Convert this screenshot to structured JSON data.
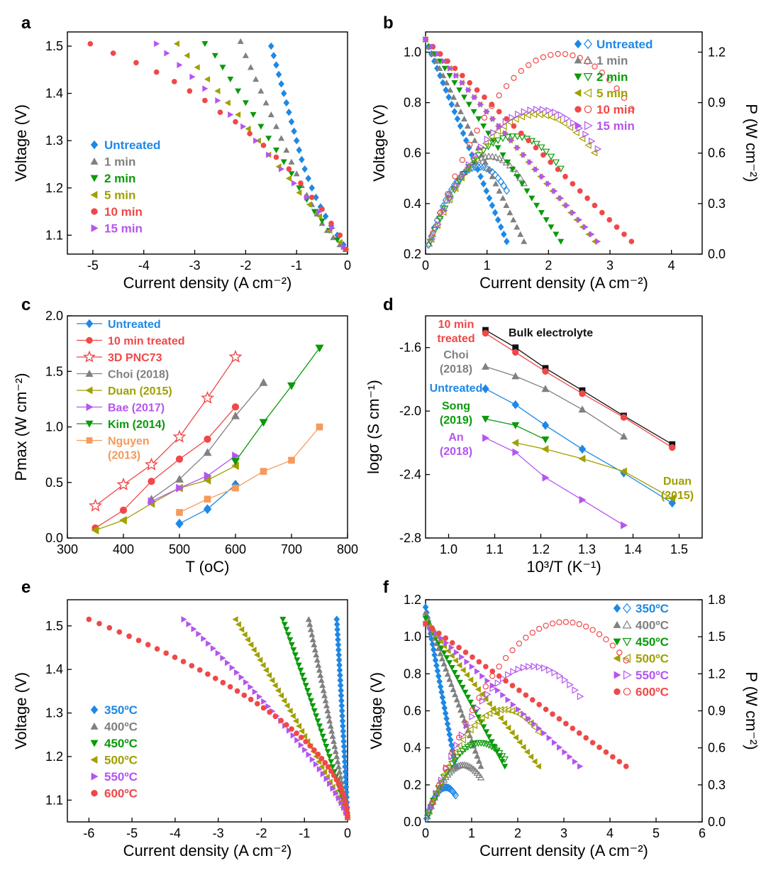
{
  "figure": {
    "panels": [
      {
        "letter": "a",
        "xlabel": "Current density (A cm⁻²)",
        "ylabel": "Voltage (V)"
      },
      {
        "letter": "b",
        "xlabel": "Current density (A cm⁻²)",
        "ylabel": "Voltage (V)",
        "y2label": "P (W cm⁻²)"
      },
      {
        "letter": "c",
        "xlabel": "T (oC)",
        "ylabel": "Pmax (W cm⁻²)"
      },
      {
        "letter": "d",
        "xlabel": "10³/T (K⁻¹)",
        "ylabel": "logσ (S cm⁻¹)"
      },
      {
        "letter": "e",
        "xlabel": "Current density (A cm⁻²)",
        "ylabel": "Voltage (V)"
      },
      {
        "letter": "f",
        "xlabel": "Current density (A cm⁻²)",
        "ylabel": "Voltage (V)",
        "y2label": "P (W cm⁻²)"
      }
    ]
  },
  "chart_data": [
    {
      "panel": "a",
      "type": "scatter",
      "xlabel": "Current density (A cm⁻²)",
      "ylabel": "Voltage (V)",
      "xlim": [
        -5.5,
        0
      ],
      "ylim": [
        1.06,
        1.53
      ],
      "xticks": [
        -5,
        -4,
        -3,
        -2,
        -1,
        0
      ],
      "yticks": [
        1.1,
        1.2,
        1.3,
        1.4,
        1.5
      ],
      "legend_position": "left-middle",
      "series": [
        {
          "name": "Untreated",
          "color": "#1E88E5",
          "marker": "diamond",
          "x": [
            -1.5,
            -1.45,
            -1.4,
            -1.35,
            -1.3,
            -1.25,
            -1.2,
            -1.15,
            -1.1,
            -1.05,
            -1.0,
            -0.95,
            -0.9,
            -0.84,
            -0.77,
            -0.7,
            -0.62,
            -0.53,
            -0.43,
            -0.32,
            -0.2,
            -0.08
          ],
          "y": [
            1.5,
            1.48,
            1.46,
            1.44,
            1.42,
            1.4,
            1.38,
            1.36,
            1.34,
            1.32,
            1.3,
            1.28,
            1.26,
            1.24,
            1.22,
            1.2,
            1.18,
            1.16,
            1.14,
            1.12,
            1.1,
            1.08
          ]
        },
        {
          "name": "1 min",
          "color": "#808080",
          "marker": "triangle-up",
          "x": [
            -2.1,
            -2.0,
            -1.9,
            -1.8,
            -1.7,
            -1.6,
            -1.5,
            -1.4,
            -1.3,
            -1.2,
            -1.1,
            -1.0,
            -0.9,
            -0.8,
            -0.7,
            -0.6,
            -0.5,
            -0.4,
            -0.28,
            -0.15,
            -0.04
          ],
          "y": [
            1.51,
            1.48,
            1.455,
            1.43,
            1.405,
            1.38,
            1.355,
            1.33,
            1.305,
            1.28,
            1.255,
            1.23,
            1.205,
            1.185,
            1.165,
            1.145,
            1.125,
            1.11,
            1.095,
            1.08,
            1.07
          ]
        },
        {
          "name": "2 min",
          "color": "#0A9A0A",
          "marker": "triangle-down",
          "x": [
            -2.8,
            -2.6,
            -2.45,
            -2.3,
            -2.15,
            -2.0,
            -1.85,
            -1.7,
            -1.55,
            -1.4,
            -1.25,
            -1.1,
            -0.95,
            -0.8,
            -0.65,
            -0.5,
            -0.35,
            -0.2,
            -0.06
          ],
          "y": [
            1.505,
            1.48,
            1.455,
            1.43,
            1.405,
            1.38,
            1.355,
            1.33,
            1.305,
            1.28,
            1.255,
            1.23,
            1.2,
            1.175,
            1.15,
            1.13,
            1.11,
            1.09,
            1.07
          ]
        },
        {
          "name": "5 min",
          "color": "#A0A000",
          "marker": "triangle-left",
          "x": [
            -3.35,
            -3.15,
            -2.95,
            -2.75,
            -2.55,
            -2.35,
            -2.15,
            -1.95,
            -1.75,
            -1.55,
            -1.35,
            -1.15,
            -0.95,
            -0.75,
            -0.55,
            -0.35,
            -0.15
          ],
          "y": [
            1.505,
            1.48,
            1.455,
            1.43,
            1.405,
            1.38,
            1.355,
            1.325,
            1.3,
            1.27,
            1.245,
            1.22,
            1.19,
            1.165,
            1.14,
            1.11,
            1.085
          ]
        },
        {
          "name": "10 min",
          "color": "#F04848",
          "marker": "circle",
          "x": [
            -5.05,
            -4.6,
            -4.15,
            -3.75,
            -3.4,
            -3.1,
            -2.8,
            -2.5,
            -2.2,
            -1.92,
            -1.65,
            -1.4,
            -1.15,
            -0.92,
            -0.7,
            -0.5,
            -0.32,
            -0.15,
            -0.03
          ],
          "y": [
            1.505,
            1.485,
            1.465,
            1.445,
            1.425,
            1.405,
            1.385,
            1.36,
            1.34,
            1.315,
            1.29,
            1.265,
            1.24,
            1.21,
            1.18,
            1.155,
            1.125,
            1.1,
            1.07
          ]
        },
        {
          "name": "15 min",
          "color": "#B455F0",
          "marker": "triangle-right",
          "x": [
            -3.75,
            -3.55,
            -3.3,
            -3.05,
            -2.8,
            -2.55,
            -2.3,
            -2.05,
            -1.8,
            -1.55,
            -1.3,
            -1.05,
            -0.8,
            -0.55,
            -0.3,
            -0.08
          ],
          "y": [
            1.505,
            1.485,
            1.46,
            1.435,
            1.41,
            1.385,
            1.355,
            1.33,
            1.3,
            1.27,
            1.24,
            1.21,
            1.18,
            1.15,
            1.115,
            1.075
          ]
        }
      ]
    },
    {
      "panel": "b",
      "type": "scatter",
      "xlabel": "Current density (A cm⁻²)",
      "ylabel": "Voltage (V)",
      "y2label": "P (W cm⁻²)",
      "xlim": [
        0,
        4.5
      ],
      "ylim": [
        0.2,
        1.08
      ],
      "y2lim": [
        0,
        1.32
      ],
      "xticks": [
        0,
        1,
        2,
        3,
        4
      ],
      "yticks": [
        0.2,
        0.4,
        0.6,
        0.8,
        1.0
      ],
      "y2ticks": [
        0.0,
        0.3,
        0.6,
        0.9,
        1.2
      ],
      "legend_position": "top-right",
      "series": [
        {
          "name": "Untreated",
          "color": "#1E88E5",
          "marker": "diamond",
          "jmax": 1.32,
          "pmax": 0.52
        },
        {
          "name": "1 min",
          "color": "#808080",
          "marker": "triangle-up",
          "jmax": 1.6,
          "pmax": 0.58
        },
        {
          "name": "2 min",
          "color": "#0A9A0A",
          "marker": "triangle-down",
          "jmax": 2.2,
          "pmax": 0.7
        },
        {
          "name": "5 min",
          "color": "#A0A000",
          "marker": "triangle-left",
          "jmax": 2.75,
          "pmax": 0.83
        },
        {
          "name": "10 min",
          "color": "#F04848",
          "marker": "circle",
          "jmax": 3.35,
          "pmax": 1.19
        },
        {
          "name": "15 min",
          "color": "#B455F0",
          "marker": "triangle-right",
          "jmax": 2.8,
          "pmax": 0.86
        }
      ]
    },
    {
      "panel": "c",
      "type": "line",
      "xlabel": "T (oC)",
      "ylabel": "Pmax (W cm⁻²)",
      "xlim": [
        300,
        800
      ],
      "ylim": [
        0,
        2.0
      ],
      "xticks": [
        300,
        400,
        500,
        600,
        700,
        800
      ],
      "yticks": [
        0.0,
        0.5,
        1.0,
        1.5,
        2.0
      ],
      "legend_position": "top-left",
      "series": [
        {
          "name": "Untreated",
          "color": "#1E88E5",
          "marker": "diamond",
          "x": [
            500,
            550,
            600
          ],
          "y": [
            0.13,
            0.26,
            0.48
          ]
        },
        {
          "name": "10 min treated",
          "color": "#F04848",
          "marker": "circle",
          "x": [
            350,
            400,
            450,
            500,
            550,
            600
          ],
          "y": [
            0.09,
            0.25,
            0.51,
            0.71,
            0.89,
            1.18
          ]
        },
        {
          "name": "3D PNC73",
          "color": "#F04848",
          "marker": "star-open",
          "x": [
            350,
            400,
            450,
            500,
            550,
            600
          ],
          "y": [
            0.29,
            0.48,
            0.66,
            0.91,
            1.26,
            1.63
          ]
        },
        {
          "name": "Choi (2018)",
          "color": "#808080",
          "marker": "triangle-up",
          "x": [
            450,
            500,
            550,
            600,
            650
          ],
          "y": [
            0.35,
            0.53,
            0.77,
            1.1,
            1.4
          ]
        },
        {
          "name": "Duan (2015)",
          "color": "#A0A000",
          "marker": "triangle-left",
          "x": [
            350,
            400,
            450,
            500,
            550,
            600
          ],
          "y": [
            0.07,
            0.16,
            0.31,
            0.45,
            0.52,
            0.65
          ]
        },
        {
          "name": "Bae (2017)",
          "color": "#B455F0",
          "marker": "triangle-right",
          "x": [
            450,
            500,
            550,
            600
          ],
          "y": [
            0.33,
            0.45,
            0.56,
            0.74
          ]
        },
        {
          "name": "Kim (2014)",
          "color": "#0A9A0A",
          "marker": "triangle-down",
          "x": [
            600,
            650,
            700,
            750
          ],
          "y": [
            0.69,
            1.04,
            1.37,
            1.71
          ]
        },
        {
          "name": "Nguyen (2013)",
          "color": "#F59A5A",
          "marker": "square",
          "x": [
            500,
            550,
            600,
            650,
            700,
            750
          ],
          "y": [
            0.23,
            0.35,
            0.45,
            0.6,
            0.7,
            1.0
          ]
        }
      ]
    },
    {
      "panel": "d",
      "type": "line",
      "xlabel": "10³/T (K⁻¹)",
      "ylabel": "logσ (S cm⁻¹)",
      "xlim": [
        0.95,
        1.55
      ],
      "ylim": [
        -2.8,
        -1.4
      ],
      "xticks": [
        1.0,
        1.1,
        1.2,
        1.3,
        1.4,
        1.5
      ],
      "yticks": [
        -1.6,
        -2.0,
        -2.4,
        -2.8
      ],
      "series": [
        {
          "name": "Bulk electrolyte",
          "color": "#111111",
          "marker": "square",
          "x": [
            1.08,
            1.145,
            1.21,
            1.29,
            1.38,
            1.485
          ],
          "y": [
            -1.49,
            -1.6,
            -1.73,
            -1.87,
            -2.03,
            -2.21
          ]
        },
        {
          "name": "10 min treated",
          "color": "#F04848",
          "marker": "circle",
          "x": [
            1.08,
            1.145,
            1.21,
            1.29,
            1.38,
            1.485
          ],
          "y": [
            -1.51,
            -1.63,
            -1.75,
            -1.89,
            -2.04,
            -2.23
          ]
        },
        {
          "name": "Choi (2018)",
          "color": "#808080",
          "marker": "triangle-up",
          "x": [
            1.08,
            1.145,
            1.21,
            1.29,
            1.38
          ],
          "y": [
            -1.72,
            -1.78,
            -1.86,
            -1.99,
            -2.16
          ]
        },
        {
          "name": "Untreated",
          "color": "#1E88E5",
          "marker": "diamond",
          "x": [
            1.08,
            1.145,
            1.21,
            1.29,
            1.38,
            1.485
          ],
          "y": [
            -1.86,
            -1.96,
            -2.09,
            -2.24,
            -2.39,
            -2.58
          ]
        },
        {
          "name": "Song (2019)",
          "color": "#0A9A0A",
          "marker": "triangle-down",
          "x": [
            1.08,
            1.145,
            1.21
          ],
          "y": [
            -2.05,
            -2.09,
            -2.18
          ]
        },
        {
          "name": "Duan (2015)",
          "color": "#A0A000",
          "marker": "triangle-left",
          "x": [
            1.145,
            1.21,
            1.29,
            1.38,
            1.485
          ],
          "y": [
            -2.2,
            -2.24,
            -2.3,
            -2.38,
            -2.55
          ]
        },
        {
          "name": "An (2018)",
          "color": "#B455F0",
          "marker": "triangle-right",
          "x": [
            1.08,
            1.145,
            1.21,
            1.29,
            1.38
          ],
          "y": [
            -2.17,
            -2.26,
            -2.42,
            -2.56,
            -2.72
          ]
        }
      ],
      "labels": [
        {
          "text": "Bulk electrolyte",
          "color": "#111111"
        },
        {
          "text": "10 min treated",
          "color": "#F04848"
        },
        {
          "text": "Choi (2018)",
          "color": "#808080"
        },
        {
          "text": "Untreated",
          "color": "#1E88E5"
        },
        {
          "text": "Song (2019)",
          "color": "#0A9A0A"
        },
        {
          "text": "An (2018)",
          "color": "#B455F0"
        },
        {
          "text": "Duan (2015)",
          "color": "#A0A000"
        }
      ]
    },
    {
      "panel": "e",
      "type": "scatter",
      "xlabel": "Current density (A cm⁻²)",
      "ylabel": "Voltage (V)",
      "xlim": [
        -6.5,
        0
      ],
      "ylim": [
        1.05,
        1.56
      ],
      "xticks": [
        -6,
        -5,
        -4,
        -3,
        -2,
        -1,
        0
      ],
      "yticks": [
        1.1,
        1.2,
        1.3,
        1.4,
        1.5
      ],
      "legend_position": "bottom-left",
      "series": [
        {
          "name": "350ºC",
          "color": "#1E88E5",
          "marker": "diamond",
          "jmin": -0.25,
          "n": 40
        },
        {
          "name": "400ºC",
          "color": "#808080",
          "marker": "triangle-up",
          "jmin": -0.9,
          "n": 40
        },
        {
          "name": "450ºC",
          "color": "#0A9A0A",
          "marker": "triangle-down",
          "jmin": -1.5,
          "n": 40
        },
        {
          "name": "500ºC",
          "color": "#A0A000",
          "marker": "triangle-left",
          "jmin": -2.6,
          "n": 40
        },
        {
          "name": "550ºC",
          "color": "#B455F0",
          "marker": "triangle-right",
          "jmin": -3.8,
          "n": 42
        },
        {
          "name": "600ºC",
          "color": "#F04848",
          "marker": "circle",
          "jmin": -6.0,
          "n": 48
        }
      ]
    },
    {
      "panel": "f",
      "type": "scatter",
      "xlabel": "Current density (A cm⁻²)",
      "ylabel": "Voltage (V)",
      "y2label": "P (W cm⁻²)",
      "xlim": [
        0,
        6
      ],
      "ylim": [
        0,
        1.2
      ],
      "y2lim": [
        0,
        1.8
      ],
      "xticks": [
        0,
        1,
        2,
        3,
        4,
        5,
        6
      ],
      "yticks": [
        0.0,
        0.2,
        0.4,
        0.6,
        0.8,
        1.0,
        1.2
      ],
      "y2ticks": [
        0.0,
        0.3,
        0.6,
        0.9,
        1.2,
        1.5,
        1.8
      ],
      "legend_position": "top-right",
      "series": [
        {
          "name": "350ºC",
          "color": "#1E88E5",
          "marker": "diamond",
          "voc": 1.16,
          "jmax": 0.65,
          "pmax": 0.28
        },
        {
          "name": "400ºC",
          "color": "#808080",
          "marker": "triangle-up",
          "voc": 1.13,
          "jmax": 1.2,
          "pmax": 0.46
        },
        {
          "name": "450ºC",
          "color": "#0A9A0A",
          "marker": "triangle-down",
          "voc": 1.1,
          "jmax": 1.72,
          "pmax": 0.64
        },
        {
          "name": "500ºC",
          "color": "#A0A000",
          "marker": "triangle-left",
          "voc": 1.08,
          "jmax": 2.45,
          "pmax": 0.91
        },
        {
          "name": "550ºC",
          "color": "#B455F0",
          "marker": "triangle-right",
          "voc": 1.07,
          "jmax": 3.35,
          "pmax": 1.26
        },
        {
          "name": "600ºC",
          "color": "#F04848",
          "marker": "circle",
          "voc": 1.07,
          "jmax": 4.35,
          "pmax": 1.62
        }
      ]
    }
  ]
}
